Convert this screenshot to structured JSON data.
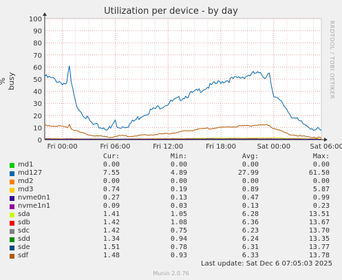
{
  "title": "Utilization per device - by day",
  "ylabel": "% busy",
  "sidelabel": "RRDTOOL / TOBI OETIKER",
  "column_headers": {
    "cur": "Cur:",
    "min": "Min:",
    "avg": "Avg:",
    "max": "Max:"
  },
  "legend": [
    {
      "name": "md1",
      "color": "#00cc00",
      "cur": "0.00",
      "min": "0.00",
      "avg": "0.00",
      "max": "0.00"
    },
    {
      "name": "md127",
      "color": "#0066b3",
      "cur": "7.55",
      "min": "4.89",
      "avg": "27.99",
      "max": "61.50"
    },
    {
      "name": "md2",
      "color": "#ff8000",
      "cur": "0.00",
      "min": "0.00",
      "avg": "0.00",
      "max": "0.00"
    },
    {
      "name": "md3",
      "color": "#ffcc00",
      "cur": "0.74",
      "min": "0.19",
      "avg": "0.89",
      "max": "5.87"
    },
    {
      "name": "nvme0n1",
      "color": "#330099",
      "cur": "0.27",
      "min": "0.13",
      "avg": "0.47",
      "max": "0.99"
    },
    {
      "name": "nvme1n1",
      "color": "#990099",
      "cur": "0.09",
      "min": "0.03",
      "avg": "0.13",
      "max": "0.23"
    },
    {
      "name": "sda",
      "color": "#ccff00",
      "cur": "1.41",
      "min": "1.05",
      "avg": "6.28",
      "max": "13.51"
    },
    {
      "name": "sdb",
      "color": "#ff0000",
      "cur": "1.42",
      "min": "1.08",
      "avg": "6.36",
      "max": "13.67"
    },
    {
      "name": "sdc",
      "color": "#808080",
      "cur": "1.42",
      "min": "0.75",
      "avg": "6.23",
      "max": "13.70"
    },
    {
      "name": "sdd",
      "color": "#008f00",
      "cur": "1.34",
      "min": "0.94",
      "avg": "6.24",
      "max": "13.35"
    },
    {
      "name": "sde",
      "color": "#00487d",
      "cur": "1.51",
      "min": "0.78",
      "avg": "6.31",
      "max": "13.77"
    },
    {
      "name": "sdf",
      "color": "#b35a00",
      "cur": "1.48",
      "min": "0.93",
      "avg": "6.33",
      "max": "13.78"
    }
  ],
  "last_update": "Last update: Sat Dec  6 07:05:03 2025",
  "footer": "Munin 2.0.76",
  "chart_data": {
    "type": "line",
    "x_hours_range": [
      0,
      31.4
    ],
    "ylim": [
      0,
      100
    ],
    "yticks": [
      0,
      10,
      20,
      30,
      40,
      50,
      60,
      70,
      80,
      90,
      100
    ],
    "xticks": [
      {
        "h": 2.0,
        "label": "Fri 00:00"
      },
      {
        "h": 8.0,
        "label": "Fri 06:00"
      },
      {
        "h": 14.0,
        "label": "Fri 12:00"
      },
      {
        "h": 20.0,
        "label": "Fri 18:00"
      },
      {
        "h": 26.0,
        "label": "Sat 00:00"
      },
      {
        "h": 32.0,
        "label": "Sat 06:00"
      }
    ],
    "series": [
      {
        "name": "md127",
        "color": "#0066b3",
        "points": [
          [
            0,
            52
          ],
          [
            1,
            50
          ],
          [
            2,
            47
          ],
          [
            2.5,
            46
          ],
          [
            2.8,
            60
          ],
          [
            3,
            47
          ],
          [
            3.5,
            30
          ],
          [
            4.5,
            20
          ],
          [
            5.5,
            12
          ],
          [
            6.5,
            10
          ],
          [
            7.5,
            9
          ],
          [
            8,
            16
          ],
          [
            8.2,
            10
          ],
          [
            9.5,
            12
          ],
          [
            11,
            20
          ],
          [
            12,
            24
          ],
          [
            14,
            30
          ],
          [
            16,
            36
          ],
          [
            18,
            42
          ],
          [
            20,
            48
          ],
          [
            22,
            51
          ],
          [
            23,
            53
          ],
          [
            24,
            55
          ],
          [
            25,
            52
          ],
          [
            25.5,
            56
          ],
          [
            26,
            35
          ],
          [
            27,
            30
          ],
          [
            28,
            20
          ],
          [
            29,
            14
          ],
          [
            30,
            11
          ],
          [
            31,
            8
          ],
          [
            31.4,
            7.5
          ]
        ]
      },
      {
        "name": "sdf",
        "color": "#b35a00",
        "points": [
          [
            0,
            12
          ],
          [
            2,
            11
          ],
          [
            2.6,
            10
          ],
          [
            2.8,
            13
          ],
          [
            3,
            9
          ],
          [
            4,
            6
          ],
          [
            5,
            4
          ],
          [
            6,
            3
          ],
          [
            7.5,
            2
          ],
          [
            8,
            3
          ],
          [
            10,
            3
          ],
          [
            12,
            4
          ],
          [
            14,
            5
          ],
          [
            16,
            7
          ],
          [
            18,
            9
          ],
          [
            20,
            10
          ],
          [
            22,
            11
          ],
          [
            24,
            12
          ],
          [
            25.5,
            12
          ],
          [
            25.8,
            10
          ],
          [
            26.5,
            8
          ],
          [
            27.5,
            5
          ],
          [
            29,
            3
          ],
          [
            30.5,
            2
          ],
          [
            31.4,
            1.5
          ]
        ]
      },
      {
        "name": "md3",
        "color": "#ffcc00",
        "points": [
          [
            0,
            0.9
          ],
          [
            3,
            0.8
          ],
          [
            6,
            0.6
          ],
          [
            8,
            0.5
          ],
          [
            12,
            0.8
          ],
          [
            16,
            1.0
          ],
          [
            20,
            1.2
          ],
          [
            24,
            1.3
          ],
          [
            26,
            1.5
          ],
          [
            28,
            1.0
          ],
          [
            31.4,
            0.7
          ]
        ]
      },
      {
        "name": "nvme0n1",
        "color": "#330099",
        "points": [
          [
            0,
            0.5
          ],
          [
            8,
            0.4
          ],
          [
            16,
            0.5
          ],
          [
            24,
            0.6
          ],
          [
            31.4,
            0.3
          ]
        ]
      }
    ]
  }
}
